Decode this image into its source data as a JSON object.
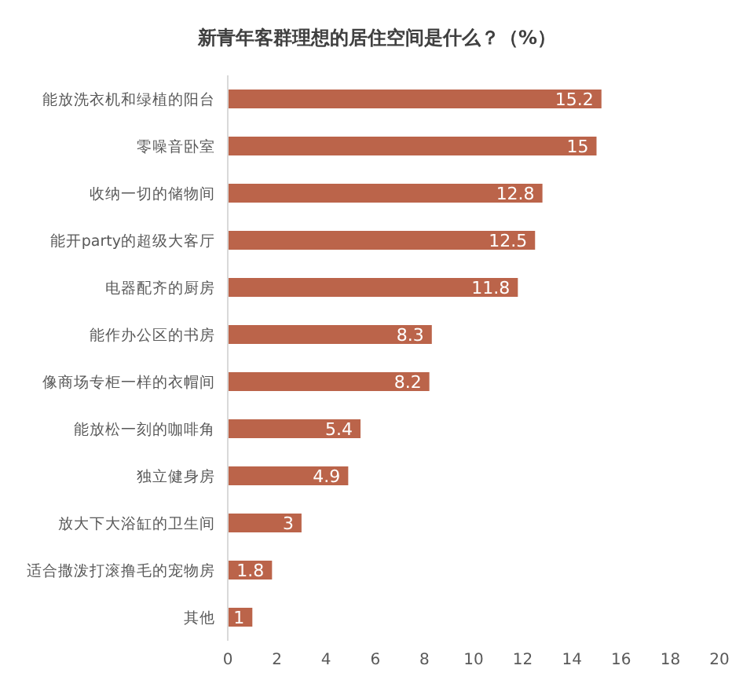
{
  "chart_data": {
    "type": "bar",
    "orientation": "horizontal",
    "title": "新青年客群理想的居住空间是什么？（%）",
    "categories": [
      "能放洗衣机和绿植的阳台",
      "零噪音卧室",
      "收纳一切的储物间",
      "能开party的超级大客厅",
      "电器配齐的厨房",
      "能作办公区的书房",
      "像商场专柜一样的衣帽间",
      "能放松一刻的咖啡角",
      "独立健身房",
      "放大下大浴缸的卫生间",
      "适合撒泼打滚撸毛的宠物房",
      "其他"
    ],
    "values": [
      15.2,
      15,
      12.8,
      12.5,
      11.8,
      8.3,
      8.2,
      5.4,
      4.9,
      3,
      1.8,
      1
    ],
    "color": "#bb644a",
    "xlim": [
      0,
      20
    ],
    "xticks": [
      0,
      2,
      4,
      6,
      8,
      10,
      12,
      14,
      16,
      18,
      20
    ],
    "grid": false,
    "data_labels": true
  }
}
